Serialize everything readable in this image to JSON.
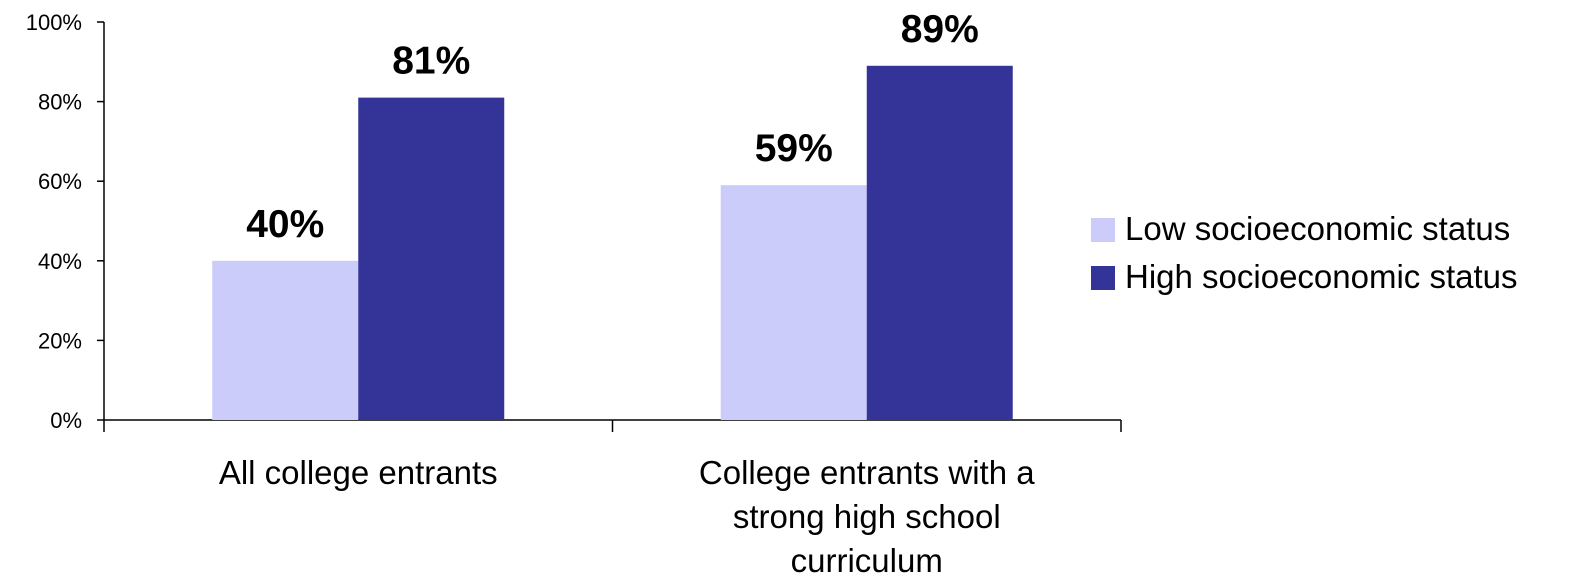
{
  "chart_data": {
    "type": "bar",
    "title": "",
    "xlabel": "",
    "ylabel": "",
    "categories": [
      "All college entrants",
      "College entrants with a strong high school curriculum"
    ],
    "category_lines": [
      [
        "All college entrants"
      ],
      [
        "College entrants with a",
        "strong high school",
        "curriculum"
      ]
    ],
    "series": [
      {
        "name": "Low socioeconomic status",
        "values": [
          40,
          59
        ],
        "labels": [
          "40%",
          "59%"
        ],
        "color": "#ccccfa"
      },
      {
        "name": "High socioeconomic status",
        "values": [
          81,
          89
        ],
        "labels": [
          "81%",
          "89%"
        ],
        "color": "#343397"
      }
    ],
    "ylim": [
      0,
      100
    ],
    "yticks": [
      0,
      20,
      40,
      60,
      80,
      100
    ],
    "ytick_labels": [
      "0%",
      "20%",
      "40%",
      "60%",
      "80%",
      "100%"
    ],
    "grid": false,
    "legend": {
      "position": "right"
    }
  }
}
